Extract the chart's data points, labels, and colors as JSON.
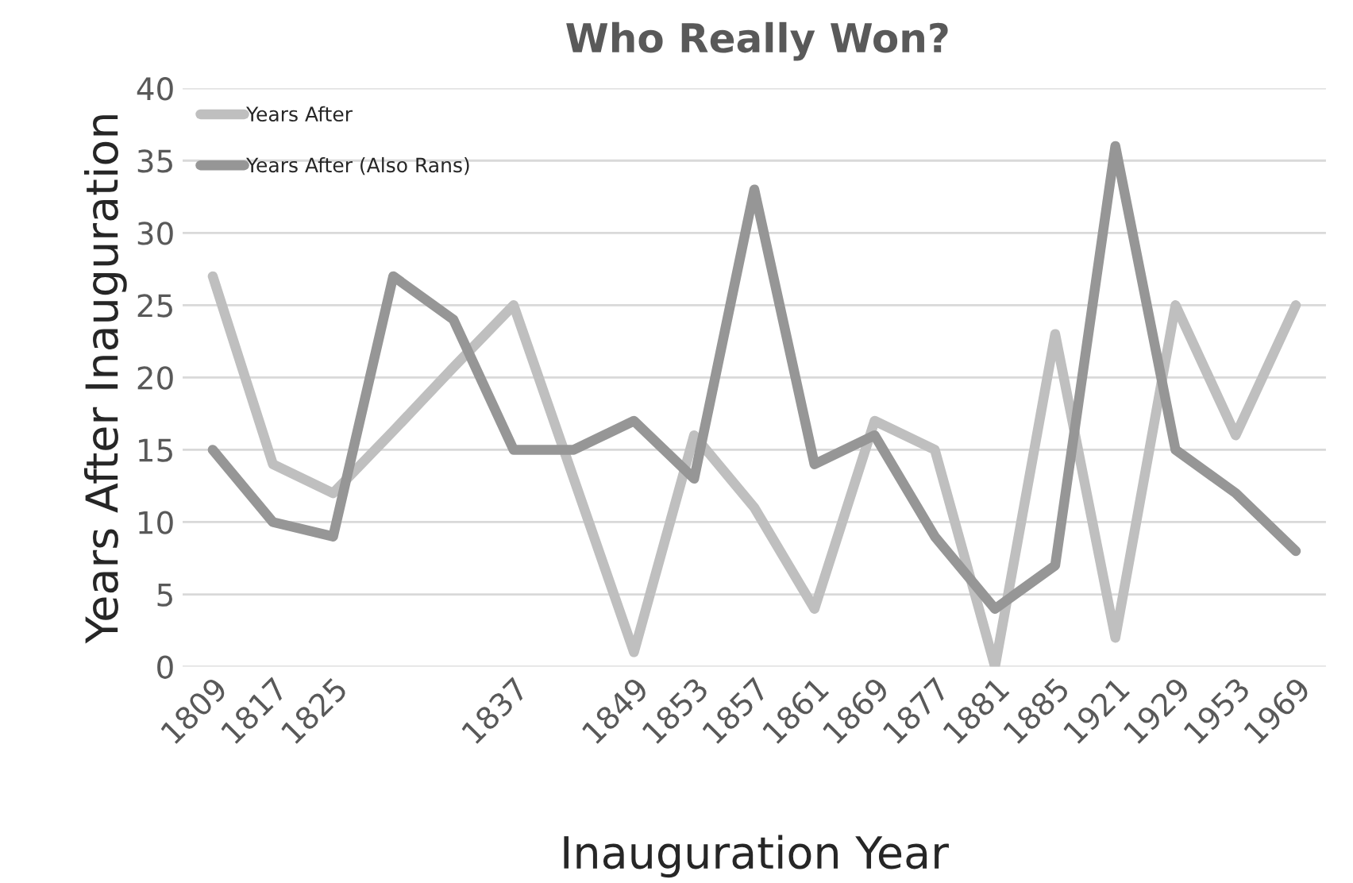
{
  "chart_data": {
    "type": "line",
    "title": "Who Really Won?",
    "xlabel": "Inauguration Year",
    "ylabel": "Years After Inauguration",
    "categories": [
      "1809",
      "1817",
      "1825",
      null,
      null,
      "1837",
      null,
      "1849",
      "1853",
      "1857",
      "1861",
      "1869",
      "1877",
      "1881",
      "1885",
      "1921",
      "1929",
      "1953",
      "1969"
    ],
    "series": [
      {
        "name": "Years After",
        "color": "#bfbfbf",
        "values": [
          27,
          14,
          12,
          16.3,
          20.7,
          25,
          13,
          1,
          16,
          11,
          4,
          17,
          15,
          0,
          23,
          2,
          25,
          16,
          25
        ]
      },
      {
        "name": "Years After (Also Rans)",
        "color": "#969696",
        "values": [
          15,
          10,
          9,
          27,
          24,
          15,
          15,
          17,
          13,
          33,
          14,
          16,
          9,
          4,
          7,
          36,
          15,
          12,
          8
        ]
      }
    ],
    "ylim": [
      0,
      40
    ],
    "yticks": [
      0,
      5,
      10,
      15,
      20,
      25,
      30,
      35,
      40
    ],
    "grid": "y",
    "legend": "top left",
    "marker": "none",
    "line_style": "solid"
  }
}
